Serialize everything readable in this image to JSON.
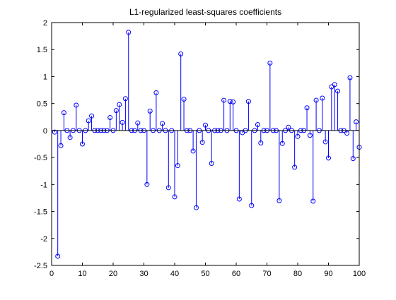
{
  "chart_data": {
    "type": "stem",
    "title": "L1-regularized least-squares coefficients",
    "xlabel": "",
    "ylabel": "",
    "xlim": [
      0,
      100
    ],
    "ylim": [
      -2.5,
      2
    ],
    "xticks": [
      0,
      10,
      20,
      30,
      40,
      50,
      60,
      70,
      80,
      90,
      100
    ],
    "yticks": [
      -2.5,
      -2,
      -1.5,
      -1,
      -0.5,
      0,
      0.5,
      1,
      1.5,
      2
    ],
    "grid": false,
    "legend": "none",
    "colors": {
      "stem": "#0000ff",
      "baseline": "#000000",
      "axes": "#000000"
    },
    "series": [
      {
        "x": [
          1,
          2,
          3,
          4,
          5,
          6,
          7,
          8,
          9,
          10,
          11,
          12,
          13,
          14,
          15,
          16,
          17,
          18,
          19,
          20,
          21,
          22,
          23,
          24,
          25,
          26,
          27,
          28,
          29,
          30,
          31,
          32,
          33,
          34,
          35,
          36,
          37,
          38,
          39,
          40,
          41,
          42,
          43,
          44,
          45,
          46,
          47,
          48,
          49,
          50,
          51,
          52,
          53,
          54,
          55,
          56,
          57,
          58,
          59,
          60,
          61,
          62,
          63,
          64,
          65,
          66,
          67,
          68,
          69,
          70,
          71,
          72,
          73,
          74,
          75,
          76,
          77,
          78,
          79,
          80,
          81,
          82,
          83,
          84,
          85,
          86,
          87,
          88,
          89,
          90,
          91,
          92,
          93,
          94,
          95,
          96,
          97,
          98,
          99,
          100
        ],
        "y": [
          -0.03,
          -2.33,
          -0.28,
          0.33,
          0,
          -0.13,
          0,
          0.47,
          0,
          -0.25,
          0,
          0.18,
          0.27,
          0,
          0,
          0,
          0,
          0,
          0.24,
          0,
          0.37,
          0.48,
          0.15,
          0.59,
          1.82,
          0,
          0,
          0.14,
          0,
          0,
          -1.0,
          0.36,
          0,
          0.7,
          0,
          0.13,
          0,
          -1.06,
          0,
          -1.23,
          -0.65,
          1.42,
          0.58,
          0,
          0,
          -0.38,
          -1.43,
          0,
          -0.22,
          0.1,
          0,
          -0.61,
          0,
          0,
          0,
          0.56,
          0,
          0.54,
          0.53,
          0,
          -1.27,
          -0.04,
          0,
          0.54,
          -1.39,
          0,
          0.11,
          -0.23,
          0,
          0,
          1.25,
          0,
          0,
          -1.3,
          -0.24,
          0,
          0.06,
          0,
          -0.68,
          -0.11,
          0,
          0,
          0.42,
          -0.09,
          -1.31,
          0.56,
          0,
          0.6,
          -0.21,
          -0.51,
          0.81,
          0.85,
          0.73,
          0,
          0,
          -0.05,
          0.98,
          -0.52,
          0.16,
          -0.31
        ]
      }
    ]
  }
}
